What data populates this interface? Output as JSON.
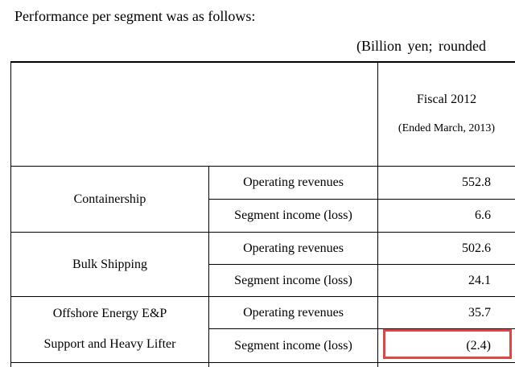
{
  "intro_text": "Performance per segment was as follows:",
  "unit_note": "(Billion  yen;  rounded",
  "header": {
    "period": "Fiscal 2012",
    "period_note": "(Ended March, 2013)"
  },
  "segments": [
    {
      "name": "Containership",
      "rows": [
        {
          "metric": "Operating revenues",
          "value": "552.8"
        },
        {
          "metric": "Segment income (loss)",
          "value": "6.6"
        }
      ]
    },
    {
      "name": "Bulk Shipping",
      "rows": [
        {
          "metric": "Operating revenues",
          "value": "502.6"
        },
        {
          "metric": "Segment income (loss)",
          "value": "24.1"
        }
      ]
    },
    {
      "name_line1": "Offshore Energy E&P",
      "name_line2": "Support and Heavy Lifter",
      "rows": [
        {
          "metric": "Operating revenues",
          "value": "35.7"
        },
        {
          "metric": "Segment income (loss)",
          "value": "(2.4)"
        }
      ]
    }
  ],
  "highlight_color": "#e04646"
}
